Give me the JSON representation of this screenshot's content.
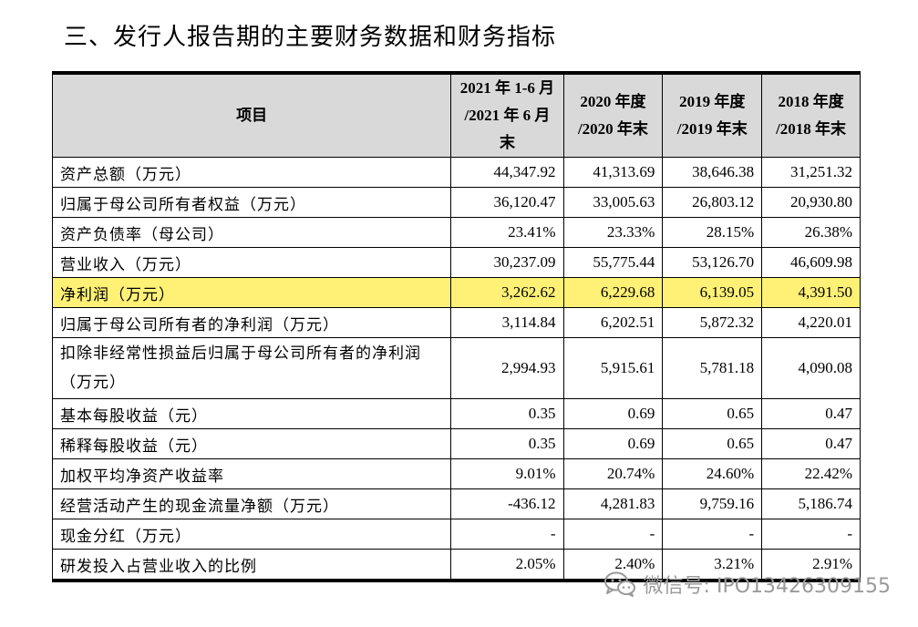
{
  "title": "三、发行人报告期的主要财务数据和财务指标",
  "table": {
    "header": {
      "item": "项目",
      "columns": [
        {
          "line1": "2021 年 1-6 月",
          "line2": "/2021 年 6 月末"
        },
        {
          "line1": "2020 年度",
          "line2": "/2020 年末"
        },
        {
          "line1": "2019 年度",
          "line2": "/2019 年末"
        },
        {
          "line1": "2018 年度",
          "line2": "/2018 年末"
        }
      ]
    },
    "rows": [
      {
        "label": "资产总额（万元）",
        "values": [
          "44,347.92",
          "41,313.69",
          "38,646.38",
          "31,251.32"
        ]
      },
      {
        "label": "归属于母公司所有者权益（万元）",
        "values": [
          "36,120.47",
          "33,005.63",
          "26,803.12",
          "20,930.80"
        ]
      },
      {
        "label": "资产负债率（母公司）",
        "values": [
          "23.41%",
          "23.33%",
          "28.15%",
          "26.38%"
        ]
      },
      {
        "label": "营业收入（万元）",
        "values": [
          "30,237.09",
          "55,775.44",
          "53,126.70",
          "46,609.98"
        ]
      },
      {
        "label": "净利润（万元）",
        "values": [
          "3,262.62",
          "6,229.68",
          "6,139.05",
          "4,391.50"
        ]
      },
      {
        "label": "归属于母公司所有者的净利润（万元）",
        "values": [
          "3,114.84",
          "6,202.51",
          "5,872.32",
          "4,220.01"
        ]
      },
      {
        "label": "扣除非经常性损益后归属于母公司所有者的净利润（万元）",
        "values": [
          "2,994.93",
          "5,915.61",
          "5,781.18",
          "4,090.08"
        ]
      },
      {
        "label": "基本每股收益（元）",
        "values": [
          "0.35",
          "0.69",
          "0.65",
          "0.47"
        ]
      },
      {
        "label": "稀释每股收益（元）",
        "values": [
          "0.35",
          "0.69",
          "0.65",
          "0.47"
        ]
      },
      {
        "label": "加权平均净资产收益率",
        "values": [
          "9.01%",
          "20.74%",
          "24.60%",
          "22.42%"
        ]
      },
      {
        "label": "经营活动产生的现金流量净额（万元）",
        "values": [
          "-436.12",
          "4,281.83",
          "9,759.16",
          "5,186.74"
        ]
      },
      {
        "label": "现金分红（万元）",
        "values": [
          "-",
          "-",
          "-",
          "-"
        ]
      },
      {
        "label": "研发投入占营业收入的比例",
        "values": [
          "2.05%",
          "2.40%",
          "3.21%",
          "2.91%"
        ]
      }
    ]
  },
  "watermark": {
    "icon": "wechat-icon",
    "text": "微信号: IPO13426309155"
  },
  "colors": {
    "header_bg": "#d9d9d9",
    "highlight": "#fff176",
    "watermark": "#9a9a9a"
  }
}
